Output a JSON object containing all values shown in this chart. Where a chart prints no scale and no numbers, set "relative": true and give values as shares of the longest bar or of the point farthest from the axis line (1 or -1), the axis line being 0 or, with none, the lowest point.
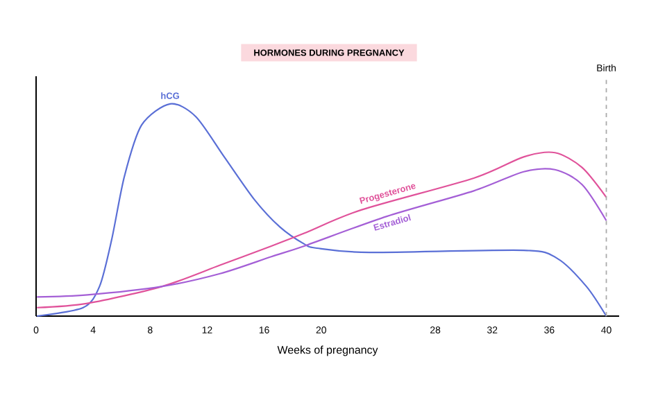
{
  "chart_data": {
    "type": "line",
    "title": "HORMONES DURING PREGNANCY",
    "xlabel": "Weeks of pregnancy",
    "relative": true,
    "xlim": [
      0,
      40.9
    ],
    "xticks": [
      0,
      4,
      8,
      12,
      16,
      20,
      28,
      32,
      36,
      40
    ],
    "series": [
      {
        "name": "hCG",
        "color": "#5a6fd6",
        "x": [
          0.06,
          3.3,
          4.45,
          5.3,
          6.2,
          7.4,
          9.4,
          11.2,
          13.2,
          15.3,
          17.1,
          18.8,
          19.7,
          23.4,
          34.2,
          36.6,
          38.6,
          40
        ],
        "values": [
          0,
          0.04,
          0.14,
          0.36,
          0.66,
          0.9,
          1.0,
          0.94,
          0.75,
          0.55,
          0.42,
          0.34,
          0.32,
          0.3,
          0.31,
          0.27,
          0.14,
          0
        ]
      },
      {
        "name": "Progesterone",
        "color": "#e0529a",
        "x": [
          0.06,
          3.6,
          8.85,
          12.9,
          16.5,
          18.8,
          22.8,
          30.7,
          34.2,
          36.4,
          38.3,
          40
        ],
        "values": [
          0.04,
          0.06,
          0.14,
          0.24,
          0.33,
          0.39,
          0.5,
          0.65,
          0.75,
          0.77,
          0.7,
          0.56
        ]
      },
      {
        "name": "Estradiol",
        "color": "#a45fd6",
        "x": [
          0.06,
          3.6,
          8.85,
          12.9,
          16.5,
          18.8,
          24.6,
          30.7,
          34.2,
          36.4,
          38.3,
          40
        ],
        "values": [
          0.09,
          0.1,
          0.14,
          0.2,
          0.28,
          0.33,
          0.47,
          0.59,
          0.68,
          0.69,
          0.62,
          0.45
        ]
      }
    ],
    "ref_lines": [
      {
        "axis": "x",
        "value": 40,
        "label": "Birth",
        "color": "#aaaaaa",
        "line_style": "dashed"
      }
    ]
  }
}
